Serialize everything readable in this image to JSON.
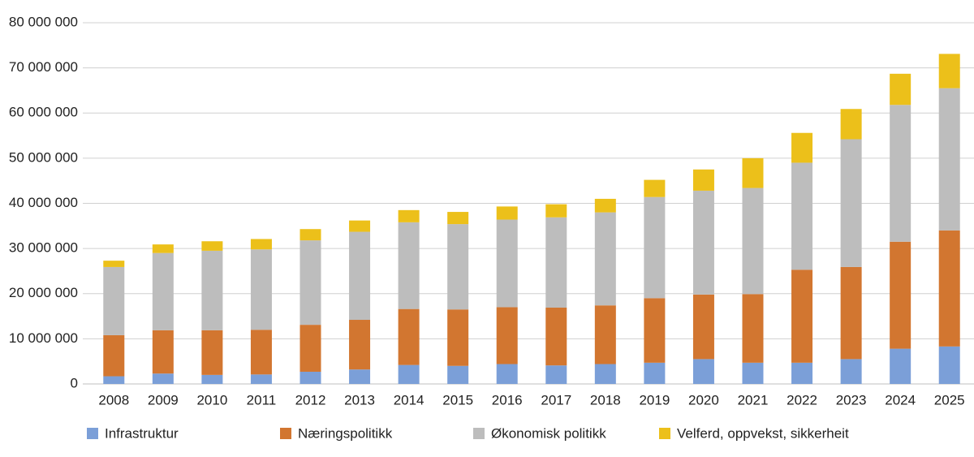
{
  "chart_data": {
    "type": "stacked_bar",
    "categories": [
      "2008",
      "2009",
      "2010",
      "2011",
      "2012",
      "2013",
      "2014",
      "2015",
      "2016",
      "2017",
      "2018",
      "2019",
      "2020",
      "2021",
      "2022",
      "2023",
      "2024",
      "2025"
    ],
    "series": [
      {
        "name": "Infrastruktur",
        "color": "#7b9fd8",
        "values": [
          1700000,
          2300000,
          2000000,
          2100000,
          2700000,
          3200000,
          4200000,
          4000000,
          4400000,
          4100000,
          4400000,
          4700000,
          5500000,
          4700000,
          4700000,
          5500000,
          7800000,
          8300000
        ]
      },
      {
        "name": "Næringspolitikk",
        "color": "#d27630",
        "values": [
          9100000,
          9600000,
          9900000,
          9900000,
          10400000,
          11000000,
          12400000,
          12500000,
          12600000,
          12800000,
          13000000,
          14300000,
          14300000,
          15200000,
          20600000,
          20400000,
          23700000,
          25700000
        ]
      },
      {
        "name": "Økonomisk politikk",
        "color": "#bdbdbd",
        "values": [
          15100000,
          17100000,
          17600000,
          17800000,
          18700000,
          19500000,
          19200000,
          18900000,
          19400000,
          20000000,
          20600000,
          22400000,
          23000000,
          23500000,
          23700000,
          28300000,
          30300000,
          31500000
        ]
      },
      {
        "name": "Velferd, oppvekst, sikkerheit",
        "color": "#ecc01a",
        "values": [
          1400000,
          1900000,
          2100000,
          2300000,
          2500000,
          2500000,
          2700000,
          2700000,
          2900000,
          2900000,
          3000000,
          3800000,
          4700000,
          6600000,
          6600000,
          6700000,
          6900000,
          7600000
        ]
      }
    ],
    "ylim": [
      0,
      80000000
    ],
    "yticks": [
      0,
      {
        "value": 10000000,
        "label": "10 000 000"
      },
      {
        "value": 20000000,
        "label": "20 000 000"
      },
      {
        "value": 30000000,
        "label": "30 000 000"
      },
      {
        "value": 40000000,
        "label": "40 000 000"
      },
      {
        "value": 50000000,
        "label": "50 000 000"
      },
      {
        "value": 60000000,
        "label": "60 000 000"
      },
      {
        "value": 70000000,
        "label": "70 000 000"
      },
      {
        "value": 80000000,
        "label": "80 000 000"
      }
    ],
    "grid": true,
    "legend": "bottom"
  }
}
